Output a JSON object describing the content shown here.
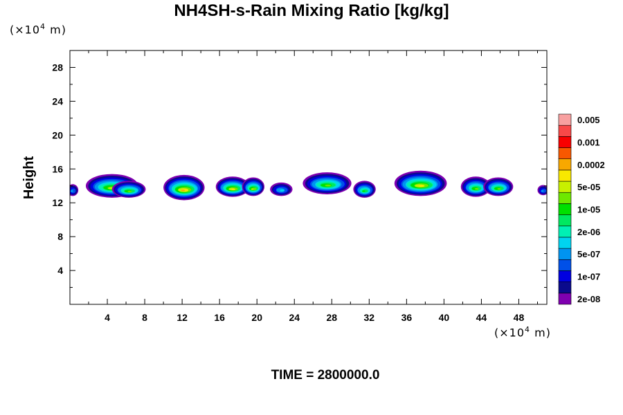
{
  "chart_data": {
    "type": "heatmap",
    "title": "NH4SH-s-Rain Mixing Ratio [kg/kg]",
    "xlabel": "",
    "ylabel": "Height",
    "x_unit_prefix": "(×10",
    "x_unit_exp": "4",
    "x_unit_suffix": " m)",
    "y_unit_prefix": "(×10",
    "y_unit_exp": "4",
    "y_unit_suffix": " m)",
    "xlim": [
      0,
      51
    ],
    "ylim": [
      0,
      30
    ],
    "x_ticks": [
      4,
      8,
      12,
      16,
      20,
      24,
      28,
      32,
      36,
      40,
      44,
      48
    ],
    "y_ticks": [
      4,
      8,
      12,
      16,
      20,
      24,
      28
    ],
    "annotation": "TIME = 2800000.0",
    "colorbar": {
      "colors": [
        "#7f00b0",
        "#0a0a8c",
        "#0000e0",
        "#0050e8",
        "#0094f0",
        "#00d4f0",
        "#00f0b4",
        "#00e860",
        "#00e000",
        "#6ee800",
        "#c8f000",
        "#f8e800",
        "#f8a800",
        "#f85800",
        "#f80000",
        "#f84848",
        "#f8a0a0"
      ],
      "labels": [
        "2e-08",
        "1e-07",
        "5e-07",
        "2e-06",
        "1e-05",
        "5e-05",
        "0.0002",
        "0.001",
        "0.005"
      ]
    },
    "cells": [
      {
        "x": 0.3,
        "y": 13.5,
        "rx": 0.6,
        "ry": 0.7,
        "peak": 4
      },
      {
        "x": 4.5,
        "y": 14.0,
        "rx": 2.8,
        "ry": 1.4,
        "peak": 10
      },
      {
        "x": 6.3,
        "y": 13.6,
        "rx": 1.8,
        "ry": 1.0,
        "peak": 9
      },
      {
        "x": 12.2,
        "y": 13.8,
        "rx": 2.2,
        "ry": 1.5,
        "peak": 12
      },
      {
        "x": 17.4,
        "y": 13.9,
        "rx": 1.8,
        "ry": 1.2,
        "peak": 11
      },
      {
        "x": 19.6,
        "y": 13.9,
        "rx": 1.2,
        "ry": 1.1,
        "peak": 10
      },
      {
        "x": 22.6,
        "y": 13.6,
        "rx": 1.2,
        "ry": 0.8,
        "peak": 5
      },
      {
        "x": 27.5,
        "y": 14.3,
        "rx": 2.6,
        "ry": 1.3,
        "peak": 9
      },
      {
        "x": 31.5,
        "y": 13.6,
        "rx": 1.2,
        "ry": 1.0,
        "peak": 8
      },
      {
        "x": 37.5,
        "y": 14.3,
        "rx": 2.8,
        "ry": 1.5,
        "peak": 11
      },
      {
        "x": 43.4,
        "y": 13.9,
        "rx": 1.6,
        "ry": 1.2,
        "peak": 9
      },
      {
        "x": 45.8,
        "y": 13.9,
        "rx": 1.6,
        "ry": 1.1,
        "peak": 9
      },
      {
        "x": 50.6,
        "y": 13.5,
        "rx": 0.6,
        "ry": 0.6,
        "peak": 4
      }
    ]
  }
}
